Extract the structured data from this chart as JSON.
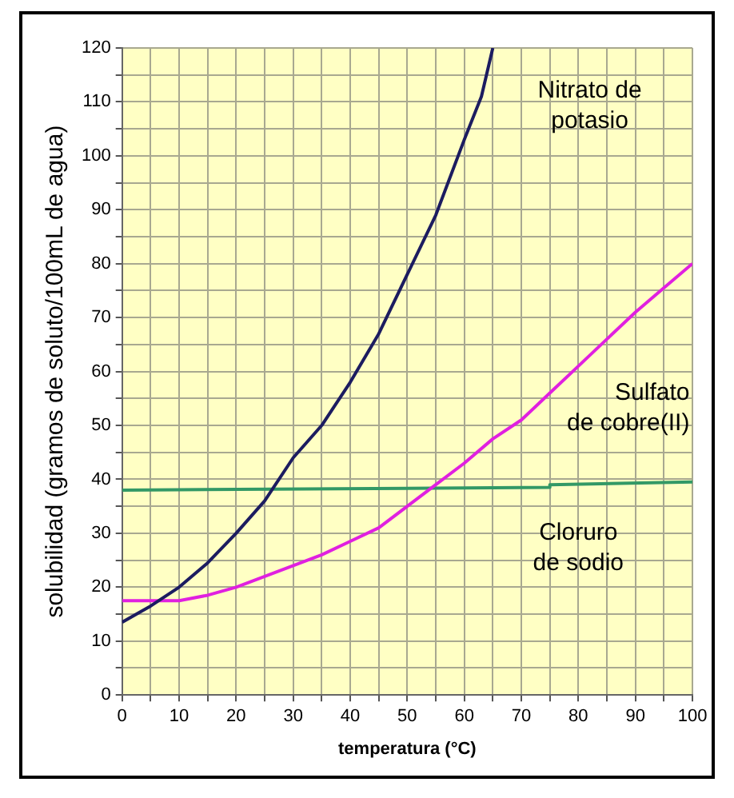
{
  "chart_data": {
    "type": "line",
    "xlabel": "temperatura (°C)",
    "ylabel": "solubilidad (gramos de soluto/100mL de agua)",
    "xlim": [
      0,
      100
    ],
    "ylim": [
      0,
      120
    ],
    "xticks": [
      0,
      {
        "value": 5,
        "label": null
      },
      10,
      {
        "value": 15,
        "label": null
      },
      20,
      {
        "value": 25,
        "label": null
      },
      30,
      {
        "value": 35,
        "label": null
      },
      40,
      {
        "value": 45,
        "label": null
      },
      50,
      {
        "value": 55,
        "label": null
      },
      60,
      {
        "value": 65,
        "label": null
      },
      70,
      {
        "value": 75,
        "label": null
      },
      80,
      {
        "value": 85,
        "label": null
      },
      90,
      {
        "value": 95,
        "label": null
      },
      100
    ],
    "yticks": [
      0,
      {
        "value": 5,
        "label": null
      },
      10,
      {
        "value": 15,
        "label": null
      },
      20,
      {
        "value": 25,
        "label": null
      },
      30,
      {
        "value": 35,
        "label": null
      },
      40,
      {
        "value": 45,
        "label": null
      },
      50,
      {
        "value": 55,
        "label": null
      },
      60,
      {
        "value": 65,
        "label": null
      },
      70,
      {
        "value": 75,
        "label": null
      },
      80,
      {
        "value": 85,
        "label": null
      },
      90,
      {
        "value": 95,
        "label": null
      },
      100,
      {
        "value": 105,
        "label": null
      },
      110,
      {
        "value": 115,
        "label": null
      },
      120
    ],
    "grid": true,
    "legend": false,
    "marker": "none",
    "line_style": "solid",
    "series": [
      {
        "name": "Nitrato de potasio",
        "color": "#1c1c60",
        "x": [
          0,
          5,
          10,
          15,
          20,
          25,
          30,
          35,
          40,
          45,
          50,
          55,
          60,
          63,
          65
        ],
        "values": [
          13.5,
          16.5,
          20,
          24.5,
          30,
          36,
          44,
          50,
          58,
          67,
          78,
          89,
          103,
          111,
          120
        ]
      },
      {
        "name": "Sulfato de cobre(II)",
        "color": "#e020e0",
        "x": [
          0,
          5,
          10,
          15,
          20,
          25,
          30,
          35,
          40,
          45,
          50,
          55,
          60,
          65,
          70,
          75,
          80,
          85,
          90,
          95,
          100
        ],
        "values": [
          17.5,
          17.5,
          17.5,
          18.5,
          20,
          22,
          24,
          26,
          28.5,
          31,
          35,
          39,
          43,
          47.5,
          51,
          56,
          61,
          66,
          71,
          75.5,
          80
        ]
      },
      {
        "name": "Cloruro de sodio",
        "color": "#339966",
        "x": [
          0,
          75,
          75,
          100
        ],
        "values": [
          38,
          38.5,
          39,
          39.5
        ]
      }
    ]
  }
}
